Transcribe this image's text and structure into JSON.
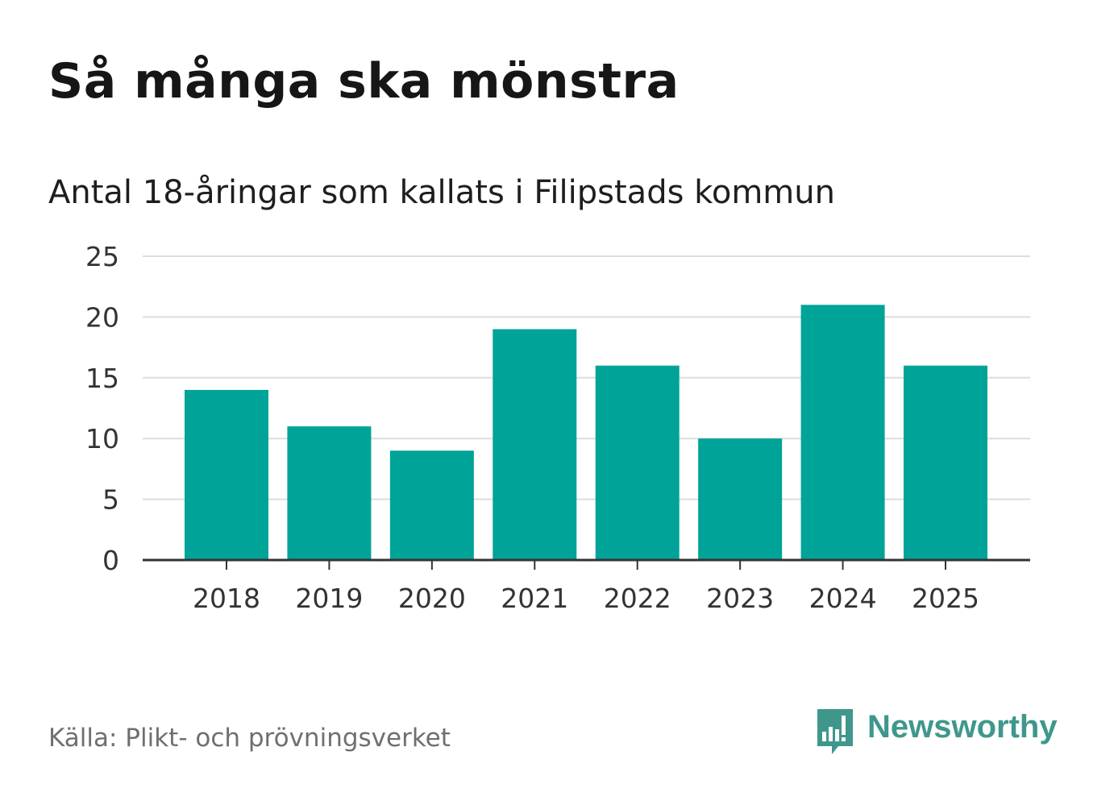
{
  "title": "Så många ska mönstra",
  "subtitle": "Antal 18-åringar som kallats i Filipstads kommun",
  "source": "Källa: Plikt- och prövningsverket",
  "brand": {
    "name": "Newsworthy",
    "icon": "newsworthy-logo-icon",
    "color": "#3f978c"
  },
  "chart_data": {
    "type": "bar",
    "categories": [
      "2018",
      "2019",
      "2020",
      "2021",
      "2022",
      "2023",
      "2024",
      "2025"
    ],
    "values": [
      14,
      11,
      9,
      19,
      16,
      10,
      21,
      16
    ],
    "y_ticks": [
      "0",
      "5",
      "10",
      "15",
      "20",
      "25"
    ],
    "ylim": [
      0,
      25
    ],
    "xlabel": "",
    "ylabel": "",
    "grid": true,
    "bar_color": "#00a398",
    "grid_color": "#dddddd",
    "axis_color": "#333333"
  }
}
